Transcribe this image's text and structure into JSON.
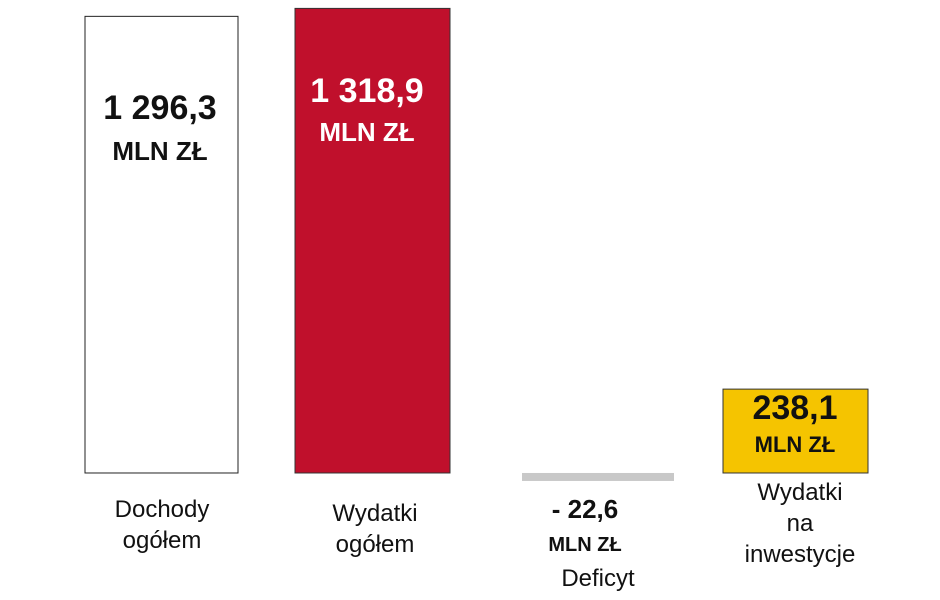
{
  "chart_data": {
    "type": "bar",
    "categories": [
      "Dochody\nogółem",
      "Wydatki\nogółem",
      "Deficyt",
      "Wydatki\nna inwestycje"
    ],
    "values": [
      1296.3,
      1318.9,
      -22.6,
      238.1
    ],
    "value_labels": [
      "1 296,3",
      "1 318,9",
      "- 22,6",
      "238,1"
    ],
    "unit": "MLN ZŁ",
    "colors": [
      "#ffffff",
      "#c0102c",
      "#c8c8c8",
      "#f5c400"
    ],
    "ylim": [
      -50,
      1320
    ]
  }
}
